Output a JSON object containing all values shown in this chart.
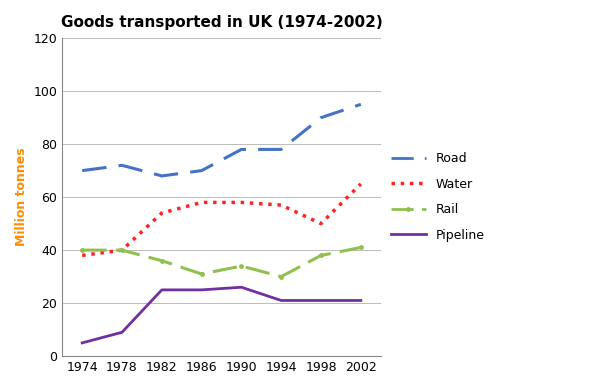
{
  "title": "Goods transported in UK (1974-2002)",
  "ylabel": "Million tonnes",
  "years": [
    1974,
    1978,
    1982,
    1986,
    1990,
    1994,
    1998,
    2002
  ],
  "road": [
    70,
    72,
    68,
    70,
    78,
    78,
    90,
    95
  ],
  "water": [
    38,
    40,
    54,
    58,
    58,
    57,
    50,
    65
  ],
  "rail": [
    40,
    40,
    36,
    31,
    34,
    30,
    38,
    41
  ],
  "pipeline": [
    5,
    9,
    25,
    25,
    26,
    21,
    21,
    21
  ],
  "road_color": "#4472C4",
  "water_color": "#FF2222",
  "rail_color": "#92C050",
  "pipeline_color": "#7030A0",
  "ylim": [
    0,
    120
  ],
  "yticks": [
    0,
    20,
    40,
    60,
    80,
    100,
    120
  ],
  "bg_color": "#FFFFFF",
  "grid_color": "#BBBBBB",
  "title_fontsize": 11,
  "tick_fontsize": 9,
  "label_fontsize": 9,
  "legend_fontsize": 9,
  "ylabel_color": "#FF8C00"
}
